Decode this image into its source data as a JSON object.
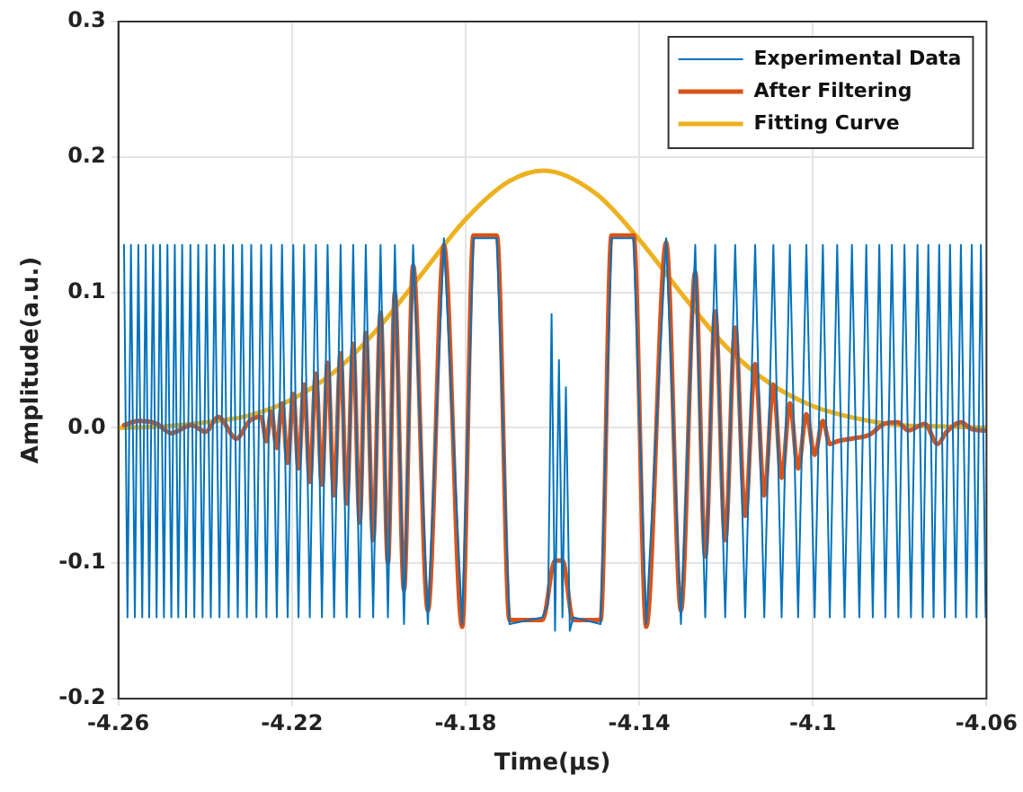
{
  "chart_data": {
    "type": "line",
    "xlabel": "Time(μs)",
    "ylabel": "Amplitude(a.u.)",
    "xlim": [
      -4.26,
      -4.06
    ],
    "xticks": [
      -4.26,
      -4.22,
      -4.18,
      -4.14,
      -4.1,
      -4.06
    ],
    "ylim": [
      -0.2,
      0.3
    ],
    "yticks": [
      -0.2,
      -0.1,
      {
        "value": 0,
        "label": "0.0"
      },
      0.1,
      0.2,
      0.3
    ],
    "grid": true,
    "legend": "top right",
    "marker": "none",
    "line_style": "solid",
    "series": [
      {
        "name": "Experimental Data",
        "color": "#0072bd",
        "x": [
          -4.2587,
          -4.2579,
          -4.2571,
          -4.2562,
          -4.2554,
          -4.2545,
          -4.2537,
          -4.2529,
          -4.252,
          -4.2512,
          -4.2504,
          -4.2495,
          -4.2487,
          -4.2478,
          -4.247,
          -4.2462,
          -4.2453,
          -4.2444,
          -4.2434,
          -4.2425,
          -4.2416,
          -4.2406,
          -4.2397,
          -4.2387,
          -4.2378,
          -4.2367,
          -4.2357,
          -4.2346,
          -4.2336,
          -4.2325,
          -4.2315,
          -4.2304,
          -4.2294,
          -4.2282,
          -4.2271,
          -4.2259,
          -4.2248,
          -4.2235,
          -4.2223,
          -4.221,
          -4.2197,
          -4.2185,
          -4.2172,
          -4.2159,
          -4.2145,
          -4.2131,
          -4.2118,
          -4.2103,
          -4.2088,
          -4.2074,
          -4.2059,
          -4.2044,
          -4.203,
          -4.2013,
          -4.1996,
          -4.1979,
          -4.1963,
          -4.1942,
          -4.1921,
          -4.1887,
          -4.185,
          -4.1808,
          -4.1782,
          -4.1728,
          -4.1699,
          -4.1623,
          -4.161,
          -4.1602,
          -4.1594,
          -4.1585,
          -4.1577,
          -4.1569,
          -4.156,
          -4.1552,
          -4.1489,
          -4.1464,
          -4.1413,
          -4.1384,
          -4.1338,
          -4.1304,
          -4.1271,
          -4.1248,
          -4.1225,
          -4.1202,
          -4.1179,
          -4.1156,
          -4.1133,
          -4.1112,
          -4.1091,
          -4.1072,
          -4.1053,
          -4.1034,
          -4.1015,
          -4.0996,
          -4.0977,
          -4.0961,
          -4.0944,
          -4.0927,
          -4.091,
          -4.0893,
          -4.0877,
          -4.0862,
          -4.0847,
          -4.0833,
          -4.0818,
          -4.0803,
          -4.0789,
          -4.0774,
          -4.0759,
          -4.0747,
          -4.0734,
          -4.0722,
          -4.0709,
          -4.0696,
          -4.0684,
          -4.0671,
          -4.0659,
          -4.0646,
          -4.0634,
          -4.0623,
          -4.0613,
          -4.0602
        ],
        "values": [
          0.135,
          -0.14,
          0.135,
          -0.14,
          0.135,
          -0.14,
          0.135,
          -0.14,
          0.135,
          -0.14,
          0.135,
          -0.14,
          0.135,
          -0.14,
          0.135,
          -0.14,
          0.135,
          -0.14,
          0.135,
          -0.14,
          0.135,
          -0.14,
          0.135,
          -0.14,
          0.135,
          -0.14,
          0.135,
          -0.14,
          0.135,
          -0.14,
          0.135,
          -0.14,
          0.135,
          -0.14,
          0.135,
          -0.14,
          0.135,
          -0.14,
          0.135,
          -0.14,
          0.135,
          -0.14,
          0.135,
          -0.14,
          0.135,
          -0.14,
          0.135,
          -0.14,
          0.135,
          -0.14,
          0.135,
          -0.14,
          0.135,
          -0.14,
          0.135,
          -0.14,
          0.135,
          -0.145,
          0.135,
          -0.145,
          0.14,
          -0.145,
          0.14,
          0.14,
          -0.145,
          -0.14,
          -0.13,
          0.084,
          -0.15,
          0.05,
          -0.14,
          0.03,
          -0.15,
          -0.14,
          -0.145,
          0.14,
          0.14,
          -0.145,
          0.14,
          -0.145,
          0.135,
          -0.14,
          0.135,
          -0.14,
          0.135,
          -0.14,
          0.135,
          -0.14,
          0.135,
          -0.14,
          0.135,
          -0.14,
          0.135,
          -0.14,
          0.135,
          -0.14,
          0.135,
          -0.14,
          0.135,
          -0.14,
          0.135,
          -0.14,
          0.135,
          -0.14,
          0.135,
          -0.14,
          0.135,
          -0.14,
          0.135,
          -0.14,
          0.135,
          -0.14,
          0.135,
          -0.14,
          0.135,
          -0.14,
          0.135,
          -0.14,
          0.135,
          -0.14,
          0.135,
          -0.14
        ]
      },
      {
        "name": "After Filtering",
        "color": "#d95319",
        "x": [
          -4.2587,
          -4.2554,
          -4.2512,
          -4.2478,
          -4.2432,
          -4.2399,
          -4.237,
          -4.2328,
          -4.2298,
          -4.2271,
          -4.2259,
          -4.2248,
          -4.2235,
          -4.2223,
          -4.221,
          -4.2197,
          -4.2185,
          -4.2172,
          -4.2159,
          -4.2145,
          -4.2131,
          -4.2118,
          -4.2103,
          -4.2088,
          -4.2074,
          -4.2059,
          -4.2044,
          -4.203,
          -4.2013,
          -4.1996,
          -4.1979,
          -4.1963,
          -4.1942,
          -4.1921,
          -4.1887,
          -4.185,
          -4.1808,
          -4.1782,
          -4.1728,
          -4.1699,
          -4.1623,
          -4.1594,
          -4.1577,
          -4.1552,
          -4.1489,
          -4.1464,
          -4.1413,
          -4.1384,
          -4.1338,
          -4.1304,
          -4.1271,
          -4.1248,
          -4.1225,
          -4.1202,
          -4.1179,
          -4.1156,
          -4.1133,
          -4.1112,
          -4.1091,
          -4.1072,
          -4.1053,
          -4.1034,
          -4.1015,
          -4.0996,
          -4.0977,
          -4.0961,
          -4.0944,
          -4.091,
          -4.0869,
          -4.0835,
          -4.0805,
          -4.078,
          -4.0742,
          -4.0713,
          -4.0692,
          -4.0659,
          -4.0634,
          -4.0605
        ],
        "values": [
          0.002,
          0.005,
          0.003,
          -0.004,
          0.002,
          -0.003,
          0.008,
          -0.008,
          0.005,
          0.008,
          -0.01,
          0.012,
          -0.015,
          0.018,
          -0.026,
          0.025,
          -0.03,
          0.032,
          -0.04,
          0.04,
          -0.042,
          0.048,
          -0.05,
          0.055,
          -0.056,
          0.062,
          -0.07,
          0.07,
          -0.083,
          0.085,
          -0.1,
          0.1,
          -0.12,
          0.12,
          -0.135,
          0.135,
          -0.147,
          0.142,
          0.142,
          -0.142,
          -0.142,
          -0.098,
          -0.098,
          -0.142,
          -0.142,
          0.142,
          0.142,
          -0.147,
          0.137,
          -0.135,
          0.115,
          -0.095,
          0.086,
          -0.083,
          0.074,
          -0.065,
          0.047,
          -0.05,
          0.032,
          -0.037,
          0.018,
          -0.03,
          0.01,
          -0.02,
          0.005,
          -0.012,
          -0.01,
          -0.008,
          -0.005,
          0.003,
          0.004,
          -0.002,
          0.003,
          -0.012,
          -0.003,
          0.004,
          -0.001,
          -0.002
        ]
      },
      {
        "name": "Fitting Curve",
        "color": "#edb120",
        "x": [
          -4.26,
          -4.25,
          -4.24,
          -4.23,
          -4.22,
          -4.21,
          -4.2,
          -4.19,
          -4.18,
          -4.17,
          -4.162,
          -4.15,
          -4.14,
          -4.13,
          -4.12,
          -4.11,
          -4.1,
          -4.09,
          -4.08,
          -4.07,
          -4.06
        ],
        "values": [
          0,
          0.001,
          0.004,
          0.009,
          0.021,
          0.042,
          0.074,
          0.114,
          0.154,
          0.182,
          0.19,
          0.173,
          0.139,
          0.098,
          0.06,
          0.033,
          0.016,
          0.007,
          0.002,
          0.001,
          0
        ]
      }
    ]
  }
}
